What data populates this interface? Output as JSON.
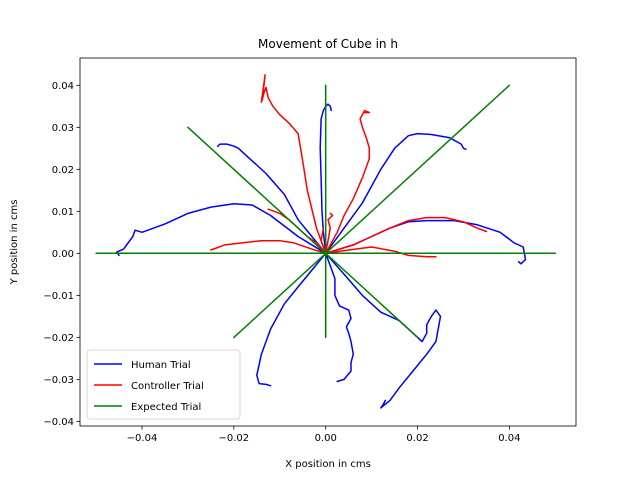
{
  "chart_data": {
    "type": "line",
    "title": "Movement of Cube in h",
    "xlabel": "X position in cms",
    "ylabel": "Y position in cms",
    "xlim": [
      -0.0535,
      0.0545
    ],
    "ylim": [
      -0.0411,
      0.0465
    ],
    "xticks": [
      -0.04,
      -0.02,
      0.0,
      0.02,
      0.04
    ],
    "xtick_labels": [
      "−0.04",
      "−0.02",
      "0.00",
      "0.02",
      "0.04"
    ],
    "yticks": [
      -0.04,
      -0.03,
      -0.02,
      -0.01,
      0.0,
      0.01,
      0.02,
      0.03,
      0.04
    ],
    "ytick_labels": [
      "−0.04",
      "−0.03",
      "−0.02",
      "−0.01",
      "0.00",
      "0.01",
      "0.02",
      "0.03",
      "0.04"
    ],
    "grid": false,
    "legend_position": "lower-left",
    "series": [
      {
        "name": "Human Trial",
        "color": "#0000ff",
        "paths": [
          [
            [
              0,
              0
            ],
            [
              -0.006,
              0.004
            ],
            [
              -0.012,
              0.009
            ],
            [
              -0.016,
              0.0115
            ],
            [
              -0.02,
              0.0118
            ],
            [
              -0.025,
              0.011
            ],
            [
              -0.03,
              0.0095
            ],
            [
              -0.035,
              0.007
            ],
            [
              -0.04,
              0.005
            ],
            [
              -0.0415,
              0.0055
            ],
            [
              -0.042,
              0.004
            ],
            [
              -0.044,
              0.001
            ],
            [
              -0.0455,
              0.0003
            ],
            [
              -0.045,
              -0.0005
            ]
          ],
          [
            [
              0,
              0
            ],
            [
              -0.003,
              0.004
            ],
            [
              -0.006,
              0.008
            ],
            [
              -0.009,
              0.014
            ],
            [
              -0.013,
              0.019
            ],
            [
              -0.016,
              0.022
            ],
            [
              -0.019,
              0.025
            ],
            [
              -0.02,
              0.0255
            ],
            [
              -0.0215,
              0.026
            ],
            [
              -0.023,
              0.026
            ],
            [
              -0.0235,
              0.0255
            ]
          ],
          [
            [
              0,
              0
            ],
            [
              -0.0005,
              0.005
            ],
            [
              -0.0008,
              0.01
            ],
            [
              -0.001,
              0.018
            ],
            [
              -0.0012,
              0.025
            ],
            [
              -0.001,
              0.032
            ],
            [
              -0.0005,
              0.034
            ],
            [
              0,
              0.035
            ],
            [
              0.0005,
              0.0355
            ],
            [
              0.001,
              0.035
            ],
            [
              0.0012,
              0.034
            ]
          ],
          [
            [
              0,
              0
            ],
            [
              0.004,
              0.006
            ],
            [
              0.008,
              0.012
            ],
            [
              0.01,
              0.016
            ],
            [
              0.012,
              0.02
            ],
            [
              0.015,
              0.025
            ],
            [
              0.018,
              0.028
            ],
            [
              0.02,
              0.0285
            ],
            [
              0.023,
              0.0283
            ],
            [
              0.027,
              0.0275
            ],
            [
              0.0295,
              0.026
            ],
            [
              0.03,
              0.025
            ],
            [
              0.0305,
              0.0248
            ]
          ],
          [
            [
              0,
              0
            ],
            [
              0.006,
              0.002
            ],
            [
              0.01,
              0.004
            ],
            [
              0.014,
              0.006
            ],
            [
              0.018,
              0.0075
            ],
            [
              0.022,
              0.0078
            ],
            [
              0.028,
              0.0078
            ],
            [
              0.033,
              0.0068
            ],
            [
              0.038,
              0.005
            ],
            [
              0.041,
              0.0025
            ],
            [
              0.043,
              0.0015
            ],
            [
              0.0435,
              -0.0015
            ],
            [
              0.0425,
              -0.0025
            ],
            [
              0.042,
              -0.002
            ]
          ],
          [
            [
              0,
              0
            ],
            [
              0.004,
              -0.005
            ],
            [
              0.008,
              -0.01
            ],
            [
              0.012,
              -0.014
            ],
            [
              0.016,
              -0.016
            ],
            [
              0.018,
              -0.018
            ],
            [
              0.02,
              -0.02
            ],
            [
              0.021,
              -0.021
            ],
            [
              0.022,
              -0.019
            ],
            [
              0.022,
              -0.017
            ],
            [
              0.023,
              -0.015
            ],
            [
              0.024,
              -0.0135
            ],
            [
              0.025,
              -0.015
            ],
            [
              0.0245,
              -0.018
            ],
            [
              0.024,
              -0.021
            ],
            [
              0.022,
              -0.024
            ],
            [
              0.019,
              -0.028
            ],
            [
              0.016,
              -0.032
            ],
            [
              0.014,
              -0.035
            ],
            [
              0.012,
              -0.0368
            ],
            [
              0.0125,
              -0.036
            ],
            [
              0.013,
              -0.035
            ]
          ],
          [
            [
              0,
              0
            ],
            [
              0.002,
              -0.006
            ],
            [
              0.002,
              -0.01
            ],
            [
              0.003,
              -0.0125
            ],
            [
              0.005,
              -0.0135
            ],
            [
              0.0055,
              -0.0155
            ],
            [
              0.0045,
              -0.0175
            ],
            [
              0.005,
              -0.019
            ],
            [
              0.0055,
              -0.021
            ],
            [
              0.006,
              -0.024
            ],
            [
              0.0055,
              -0.026
            ],
            [
              0.0055,
              -0.028
            ],
            [
              0.004,
              -0.03
            ],
            [
              0.004,
              -0.03
            ],
            [
              0.0025,
              -0.0305
            ]
          ],
          [
            [
              0,
              0
            ],
            [
              -0.003,
              -0.004
            ],
            [
              -0.006,
              -0.008
            ],
            [
              -0.009,
              -0.012
            ],
            [
              -0.012,
              -0.018
            ],
            [
              -0.014,
              -0.024
            ],
            [
              -0.015,
              -0.029
            ],
            [
              -0.0145,
              -0.031
            ],
            [
              -0.013,
              -0.0312
            ],
            [
              -0.012,
              -0.0315
            ]
          ]
        ]
      },
      {
        "name": "Controller Trial",
        "color": "#ff0000",
        "paths": [
          [
            [
              0,
              0
            ],
            [
              -0.003,
              0.001
            ],
            [
              -0.007,
              0.0025
            ],
            [
              -0.01,
              0.003
            ],
            [
              -0.014,
              0.003
            ],
            [
              -0.018,
              0.0025
            ],
            [
              -0.022,
              0.002
            ],
            [
              -0.025,
              0.0008
            ]
          ],
          [
            [
              0,
              0
            ],
            [
              -0.002,
              0.0025
            ],
            [
              -0.004,
              0.004
            ],
            [
              -0.006,
              0.006
            ],
            [
              -0.008,
              0.008
            ],
            [
              -0.01,
              0.0095
            ],
            [
              -0.0125,
              0.0105
            ]
          ],
          [
            [
              0,
              0
            ],
            [
              -0.002,
              0.006
            ],
            [
              -0.004,
              0.015
            ],
            [
              -0.005,
              0.022
            ],
            [
              -0.006,
              0.0285
            ],
            [
              -0.008,
              0.031
            ],
            [
              -0.01,
              0.033
            ],
            [
              -0.0115,
              0.035
            ],
            [
              -0.0125,
              0.037
            ],
            [
              -0.013,
              0.0395
            ],
            [
              -0.0135,
              0.038
            ],
            [
              -0.0138,
              0.0365
            ],
            [
              -0.0132,
              0.0425
            ],
            [
              -0.014,
              0.036
            ]
          ],
          [
            [
              0,
              0
            ],
            [
              0.0025,
              0.005
            ],
            [
              0.004,
              0.009
            ],
            [
              0.006,
              0.013
            ],
            [
              0.008,
              0.018
            ],
            [
              0.0095,
              0.0225
            ],
            [
              0.0095,
              0.025
            ],
            [
              0.009,
              0.027
            ],
            [
              0.008,
              0.03
            ],
            [
              0.0075,
              0.032
            ],
            [
              0.0085,
              0.034
            ],
            [
              0.0095,
              0.0335
            ],
            [
              0.0085,
              0.0335
            ]
          ],
          [
            [
              0,
              0
            ],
            [
              0.006,
              0.002
            ],
            [
              0.01,
              0.004
            ],
            [
              0.014,
              0.006
            ],
            [
              0.018,
              0.0078
            ],
            [
              0.022,
              0.0085
            ],
            [
              0.026,
              0.0085
            ],
            [
              0.03,
              0.0075
            ],
            [
              0.033,
              0.006
            ],
            [
              0.035,
              0.0052
            ]
          ],
          [
            [
              0,
              0
            ],
            [
              0.005,
              0.0008
            ],
            [
              0.01,
              0.0015
            ],
            [
              0.015,
              0.0005
            ],
            [
              0.018,
              -0.0005
            ],
            [
              0.022,
              -0.0008
            ],
            [
              0.024,
              -0.0008
            ]
          ],
          [
            [
              0,
              0
            ],
            [
              0.0005,
              0.003
            ],
            [
              0.001,
              0.006
            ],
            [
              0.0005,
              0.008
            ],
            [
              0.0015,
              0.009
            ],
            [
              0.001,
              0.0095
            ]
          ],
          [
            [
              0,
              0
            ],
            [
              -0.001,
              0.003
            ],
            [
              -0.0005,
              0.006
            ]
          ]
        ]
      },
      {
        "name": "Expected Trial",
        "color": "#008000",
        "paths": [
          [
            [
              -0.05,
              0
            ],
            [
              0.05,
              0
            ]
          ],
          [
            [
              0,
              -0.02
            ],
            [
              0,
              0.04
            ]
          ],
          [
            [
              -0.02,
              -0.02
            ],
            [
              0.04,
              0.04
            ]
          ],
          [
            [
              -0.03,
              0.03
            ],
            [
              0.02,
              -0.02
            ]
          ]
        ]
      }
    ]
  }
}
